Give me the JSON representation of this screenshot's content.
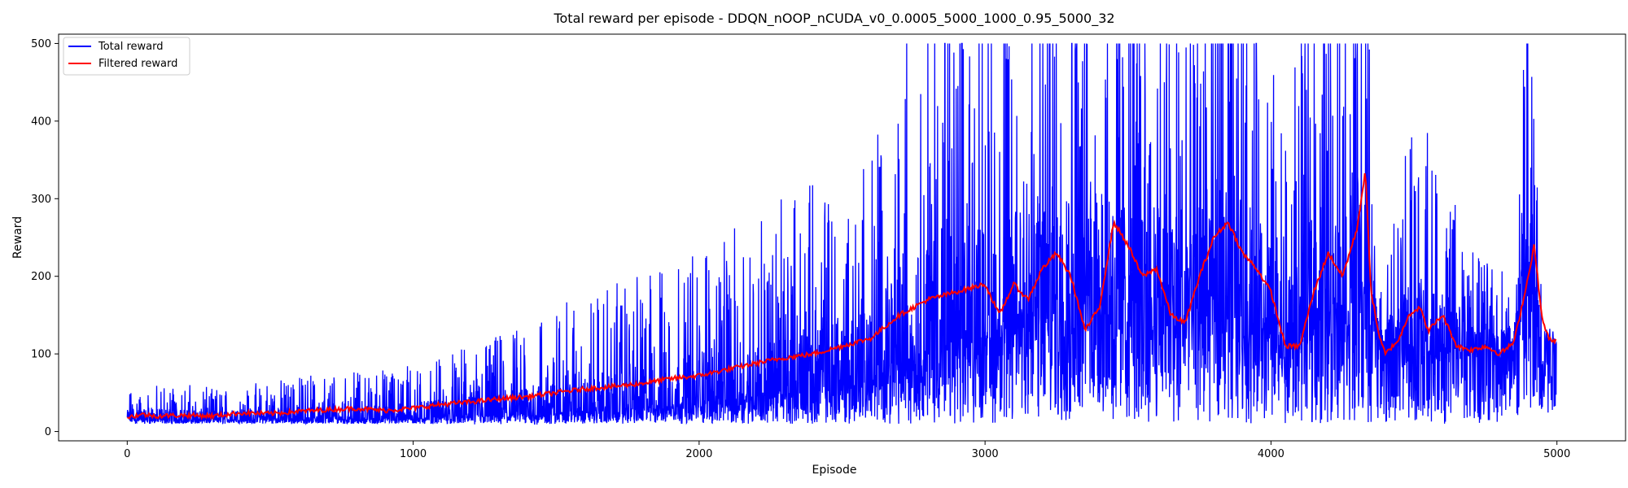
{
  "chart_data": {
    "type": "line",
    "title": "Total reward per episode - DDQN_nOOP_nCUDA_v0_0.0005_5000_1000_0.95_5000_32",
    "xlabel": "Episode",
    "ylabel": "Reward",
    "xlim": [
      -240,
      5240
    ],
    "ylim": [
      -12,
      512
    ],
    "xticks": [
      0,
      1000,
      2000,
      3000,
      4000,
      5000
    ],
    "yticks": [
      0,
      100,
      200,
      300,
      400,
      500
    ],
    "grid": false,
    "legend_position": "top-left",
    "episodes": 5000,
    "series": [
      {
        "name": "Total reward",
        "color": "#0000ff",
        "profile": {
          "x": [
            0,
            150,
            300,
            600,
            800,
            1000,
            1200,
            1400,
            1600,
            1800,
            2000,
            2200,
            2400,
            2600,
            2800,
            3000,
            3200,
            3400,
            3600,
            3800,
            3950,
            4050,
            4150,
            4250,
            4330,
            4380,
            4500,
            4600,
            4700,
            4850,
            4900,
            4950,
            5000
          ],
          "center": [
            18,
            16,
            16,
            17,
            17,
            18,
            20,
            23,
            28,
            32,
            40,
            50,
            60,
            75,
            110,
            130,
            170,
            190,
            160,
            180,
            160,
            100,
            170,
            180,
            200,
            110,
            120,
            115,
            110,
            110,
            180,
            120,
            115
          ],
          "spread": [
            35,
            50,
            40,
            55,
            60,
            70,
            90,
            120,
            150,
            170,
            200,
            230,
            270,
            300,
            480,
            490,
            490,
            490,
            490,
            490,
            480,
            300,
            460,
            470,
            490,
            60,
            300,
            250,
            130,
            100,
            490,
            30,
            15
          ]
        }
      },
      {
        "name": "Filtered reward",
        "color": "#ff0000",
        "points": [
          [
            0,
            18
          ],
          [
            50,
            22
          ],
          [
            100,
            20
          ],
          [
            200,
            21
          ],
          [
            300,
            20
          ],
          [
            400,
            24
          ],
          [
            500,
            23
          ],
          [
            600,
            26
          ],
          [
            700,
            28
          ],
          [
            800,
            30
          ],
          [
            900,
            27
          ],
          [
            1000,
            30
          ],
          [
            1100,
            35
          ],
          [
            1200,
            38
          ],
          [
            1300,
            42
          ],
          [
            1400,
            45
          ],
          [
            1500,
            50
          ],
          [
            1600,
            55
          ],
          [
            1700,
            58
          ],
          [
            1800,
            62
          ],
          [
            1900,
            68
          ],
          [
            2000,
            72
          ],
          [
            2100,
            80
          ],
          [
            2200,
            88
          ],
          [
            2300,
            95
          ],
          [
            2400,
            100
          ],
          [
            2500,
            110
          ],
          [
            2600,
            120
          ],
          [
            2700,
            150
          ],
          [
            2800,
            170
          ],
          [
            2900,
            180
          ],
          [
            3000,
            190
          ],
          [
            3050,
            150
          ],
          [
            3100,
            190
          ],
          [
            3150,
            170
          ],
          [
            3200,
            210
          ],
          [
            3250,
            230
          ],
          [
            3300,
            200
          ],
          [
            3350,
            130
          ],
          [
            3400,
            160
          ],
          [
            3450,
            270
          ],
          [
            3500,
            240
          ],
          [
            3550,
            200
          ],
          [
            3600,
            210
          ],
          [
            3650,
            150
          ],
          [
            3700,
            140
          ],
          [
            3750,
            200
          ],
          [
            3800,
            250
          ],
          [
            3850,
            270
          ],
          [
            3900,
            230
          ],
          [
            3950,
            210
          ],
          [
            4000,
            180
          ],
          [
            4050,
            110
          ],
          [
            4100,
            110
          ],
          [
            4150,
            180
          ],
          [
            4200,
            230
          ],
          [
            4250,
            200
          ],
          [
            4300,
            260
          ],
          [
            4330,
            335
          ],
          [
            4350,
            180
          ],
          [
            4380,
            120
          ],
          [
            4400,
            100
          ],
          [
            4450,
            120
          ],
          [
            4480,
            150
          ],
          [
            4520,
            160
          ],
          [
            4550,
            130
          ],
          [
            4600,
            150
          ],
          [
            4650,
            110
          ],
          [
            4700,
            105
          ],
          [
            4750,
            110
          ],
          [
            4800,
            100
          ],
          [
            4850,
            115
          ],
          [
            4900,
            200
          ],
          [
            4920,
            240
          ],
          [
            4950,
            140
          ],
          [
            4980,
            115
          ],
          [
            5000,
            118
          ]
        ]
      }
    ]
  }
}
